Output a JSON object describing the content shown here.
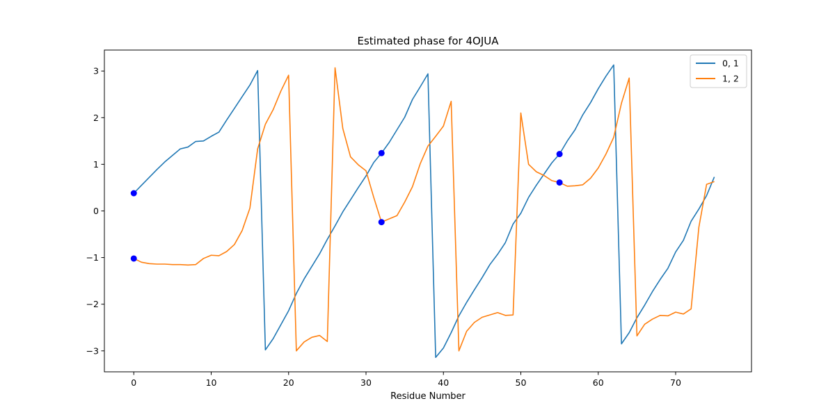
{
  "chart_data": {
    "type": "line",
    "title": "Estimated phase for 4OJUA",
    "xlabel": "Residue Number",
    "ylabel": "",
    "xlim": [
      -3.8,
      79.8
    ],
    "ylim": [
      -3.45,
      3.45
    ],
    "xticks": [
      0,
      10,
      20,
      30,
      40,
      50,
      60,
      70
    ],
    "yticks": [
      -3,
      -2,
      -1,
      0,
      1,
      2,
      3
    ],
    "ytick_labels": [
      "−3",
      "−2",
      "−1",
      "0",
      "1",
      "2",
      "3"
    ],
    "grid": false,
    "legend": {
      "placement": "top-right"
    },
    "series": [
      {
        "name": "0, 1",
        "color": "#1f77b4",
        "x": [
          0,
          1,
          2,
          3,
          4,
          5,
          6,
          7,
          8,
          9,
          10,
          11,
          12,
          13,
          14,
          15,
          16,
          17,
          18,
          19,
          20,
          21,
          22,
          23,
          24,
          25,
          26,
          27,
          28,
          29,
          30,
          31,
          32,
          33,
          34,
          35,
          36,
          37,
          38,
          39,
          40,
          41,
          42,
          43,
          44,
          45,
          46,
          47,
          48,
          49,
          50,
          51,
          52,
          53,
          54,
          55,
          56,
          57,
          58,
          59,
          60,
          61,
          62,
          63,
          64,
          65,
          66,
          67,
          68,
          69,
          70,
          71,
          72,
          73,
          74,
          75
        ],
        "y": [
          0.38,
          0.55,
          0.72,
          0.89,
          1.05,
          1.19,
          1.33,
          1.37,
          1.49,
          1.5,
          1.6,
          1.69,
          1.95,
          2.2,
          2.45,
          2.7,
          3.01,
          -2.98,
          -2.74,
          -2.44,
          -2.14,
          -1.77,
          -1.46,
          -1.19,
          -0.92,
          -0.61,
          -0.32,
          -0.02,
          0.24,
          0.5,
          0.75,
          1.04,
          1.24,
          1.47,
          1.74,
          2.01,
          2.39,
          2.66,
          2.94,
          -3.14,
          -2.94,
          -2.61,
          -2.25,
          -1.96,
          -1.69,
          -1.43,
          -1.15,
          -0.93,
          -0.68,
          -0.28,
          -0.05,
          0.29,
          0.55,
          0.79,
          1.03,
          1.22,
          1.5,
          1.74,
          2.06,
          2.32,
          2.62,
          2.89,
          3.13,
          -2.85,
          -2.61,
          -2.29,
          -2.02,
          -1.73,
          -1.47,
          -1.23,
          -0.88,
          -0.63,
          -0.22,
          0.04,
          0.33,
          0.73
        ]
      },
      {
        "name": "1, 2",
        "color": "#ff7f0e",
        "x": [
          0,
          1,
          2,
          3,
          4,
          5,
          6,
          7,
          8,
          9,
          10,
          11,
          12,
          13,
          14,
          15,
          16,
          17,
          18,
          19,
          20,
          21,
          22,
          23,
          24,
          25,
          26,
          27,
          28,
          29,
          30,
          31,
          32,
          33,
          34,
          35,
          36,
          37,
          38,
          39,
          40,
          41,
          42,
          43,
          44,
          45,
          46,
          47,
          48,
          49,
          50,
          51,
          52,
          53,
          54,
          55,
          56,
          57,
          58,
          59,
          60,
          61,
          62,
          63,
          64,
          65,
          66,
          67,
          68,
          69,
          70,
          71,
          72,
          73,
          74,
          75
        ],
        "y": [
          -1.02,
          -1.1,
          -1.13,
          -1.14,
          -1.14,
          -1.15,
          -1.15,
          -1.16,
          -1.15,
          -1.02,
          -0.95,
          -0.96,
          -0.87,
          -0.72,
          -0.42,
          0.06,
          1.33,
          1.86,
          2.17,
          2.57,
          2.91,
          -3.0,
          -2.81,
          -2.71,
          -2.67,
          -2.8,
          3.07,
          1.77,
          1.16,
          0.99,
          0.86,
          0.29,
          -0.24,
          -0.17,
          -0.1,
          0.19,
          0.52,
          1.01,
          1.39,
          1.6,
          1.82,
          2.35,
          -3.0,
          -2.58,
          -2.39,
          -2.28,
          -2.23,
          -2.18,
          -2.24,
          -2.23,
          2.1,
          1.0,
          0.84,
          0.76,
          0.65,
          0.61,
          0.53,
          0.54,
          0.56,
          0.7,
          0.92,
          1.22,
          1.58,
          2.31,
          2.85,
          -2.68,
          -2.43,
          -2.32,
          -2.24,
          -2.25,
          -2.17,
          -2.21,
          -2.1,
          -0.35,
          0.57,
          0.63
        ]
      }
    ],
    "markers": {
      "color": "#0000ff",
      "x": [
        0,
        0,
        32,
        32,
        55,
        55
      ],
      "y": [
        0.38,
        -1.02,
        1.24,
        -0.24,
        1.22,
        0.61
      ]
    }
  }
}
